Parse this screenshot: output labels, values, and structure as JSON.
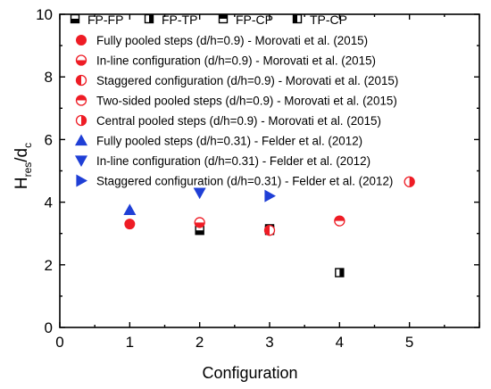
{
  "chart_data": {
    "type": "scatter",
    "title": "",
    "xlabel": "Configuration",
    "ylabel": {
      "base": "H",
      "sub1": "res",
      "mid": "/d",
      "sub2": "c"
    },
    "xlim": [
      0,
      6
    ],
    "ylim": [
      0,
      10
    ],
    "xticks": [
      0,
      1,
      2,
      3,
      4,
      5
    ],
    "yticks": [
      0,
      2,
      4,
      6,
      8,
      10
    ],
    "grid": false,
    "legend_placement": "top-left",
    "legend_top_row": [
      "FP-FP",
      "FP-TP",
      "FP-CP",
      "TP-CP"
    ],
    "series": [
      {
        "name": "FP-FP",
        "marker": "square-half-bottom",
        "color": "#000000",
        "points": [
          [
            2,
            3.1
          ],
          [
            3,
            3.1
          ]
        ]
      },
      {
        "name": "FP-TP",
        "marker": "square-half-right",
        "color": "#000000",
        "points": [
          [
            4,
            1.75
          ]
        ]
      },
      {
        "name": "FP-CP",
        "marker": "square-half-top",
        "color": "#000000",
        "points": [
          [
            3,
            3.15
          ]
        ]
      },
      {
        "name": "TP-CP",
        "marker": "square-half-left",
        "color": "#000000",
        "points": []
      },
      {
        "name": "Fully pooled steps (d/h=0.9) - Morovati et al. (2015)",
        "marker": "circle-full",
        "color": "#ee1c25",
        "points": [
          [
            1,
            3.3
          ]
        ]
      },
      {
        "name": "In-line configuration (d/h=0.9) - Morovati et al. (2015)",
        "marker": "circle-half-bottom",
        "color": "#ee1c25",
        "points": [
          [
            2,
            3.35
          ]
        ]
      },
      {
        "name": "Staggered configuration (d/h=0.9) - Morovati et al. (2015)",
        "marker": "circle-half-left",
        "color": "#ee1c25",
        "points": [
          [
            3,
            3.1
          ]
        ]
      },
      {
        "name": "Two-sided pooled steps (d/h=0.9) - Morovati et al. (2015)",
        "marker": "circle-half-top",
        "color": "#ee1c25",
        "points": [
          [
            4,
            3.4
          ]
        ]
      },
      {
        "name": "Central pooled steps (d/h=0.9) - Morovati et al. (2015)",
        "marker": "circle-half-right",
        "color": "#ee1c25",
        "points": [
          [
            5,
            4.65
          ]
        ]
      },
      {
        "name": "Fully pooled steps (d/h=0.31) - Felder et al. (2012)",
        "marker": "triangle-up",
        "color": "#1f3fd6",
        "points": [
          [
            1,
            3.75
          ]
        ]
      },
      {
        "name": "In-line configuration (d/h=0.31) - Felder et al. (2012)",
        "marker": "triangle-down",
        "color": "#1f3fd6",
        "points": [
          [
            2,
            4.3
          ]
        ]
      },
      {
        "name": "Staggered configuration (d/h=0.31) - Felder et al. (2012)",
        "marker": "triangle-right",
        "color": "#1f3fd6",
        "points": [
          [
            3,
            4.2
          ]
        ]
      }
    ]
  }
}
